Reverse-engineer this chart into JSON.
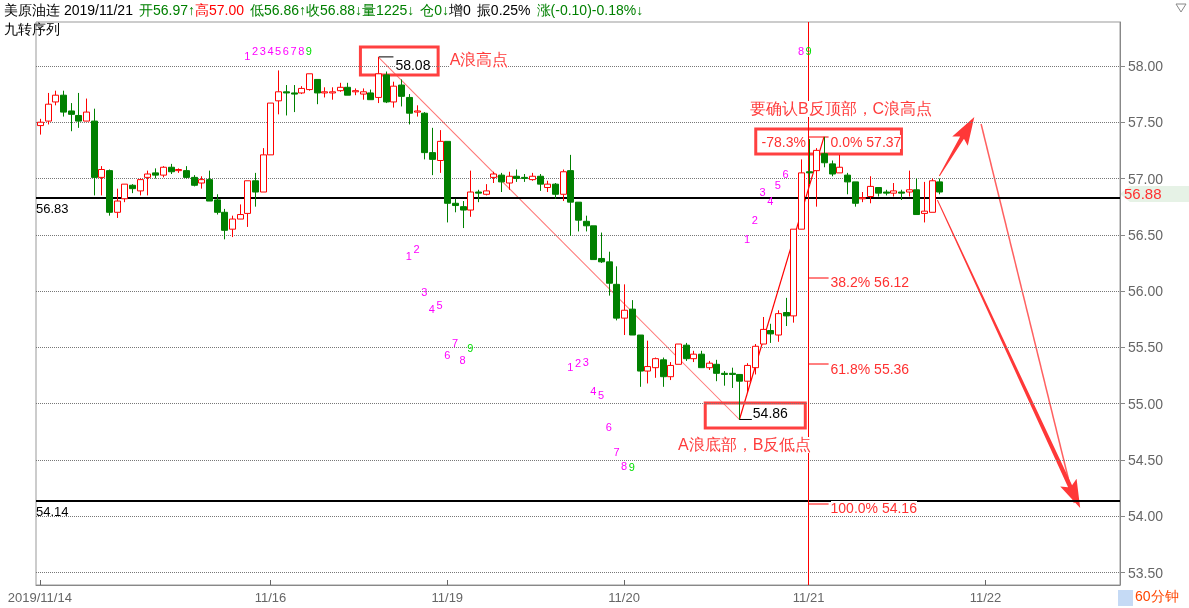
{
  "chart_data": {
    "type": "candlestick",
    "title": "美原油连 2019/11/21",
    "subtitle": "九转序列",
    "categories": [
      "2019/11/14",
      null,
      null,
      null,
      null,
      null,
      null,
      null,
      null,
      null,
      null,
      null,
      null,
      null,
      null,
      null,
      null,
      null,
      null,
      null,
      null,
      null,
      null,
      null,
      null,
      null,
      null,
      null,
      null,
      null,
      "11/16",
      null,
      null,
      null,
      null,
      null,
      null,
      null,
      null,
      null,
      null,
      null,
      null,
      null,
      null,
      null,
      null,
      null,
      null,
      null,
      null,
      null,
      null,
      "11/19",
      null,
      null,
      null,
      null,
      null,
      null,
      null,
      null,
      null,
      null,
      null,
      null,
      null,
      null,
      null,
      null,
      null,
      null,
      null,
      null,
      null,
      null,
      "11/20",
      null,
      null,
      null,
      null,
      null,
      null,
      null,
      null,
      null,
      null,
      null,
      null,
      null,
      null,
      null,
      null,
      null,
      null,
      null,
      null,
      null,
      null,
      null,
      "11/21",
      null,
      null,
      null,
      null,
      null,
      null,
      null,
      null,
      null,
      null,
      null,
      null,
      null,
      null,
      null,
      null,
      null,
      null,
      null,
      null,
      null,
      null,
      "11/22",
      null,
      null,
      null,
      null,
      null,
      null,
      null,
      null,
      null,
      null,
      null,
      null,
      null,
      null,
      null,
      null,
      null
    ],
    "ohlc": [
      [
        57.47,
        57.53,
        57.39,
        57.5
      ],
      [
        57.51,
        57.76,
        57.48,
        57.66
      ],
      [
        57.68,
        57.78,
        57.65,
        57.74
      ],
      [
        57.74,
        57.78,
        57.55,
        57.59
      ],
      [
        57.6,
        57.67,
        57.42,
        57.57
      ],
      [
        57.56,
        57.76,
        57.45,
        57.51
      ],
      [
        57.51,
        57.71,
        57.51,
        57.59
      ],
      [
        57.51,
        57.62,
        56.85,
        57.01
      ],
      [
        57.01,
        57.11,
        56.85,
        57.08
      ],
      [
        57.07,
        57.08,
        56.67,
        56.7
      ],
      [
        56.7,
        56.91,
        56.65,
        56.8
      ],
      [
        56.82,
        56.95,
        56.79,
        56.95
      ],
      [
        56.94,
        56.95,
        56.87,
        56.91
      ],
      [
        56.89,
        57.0,
        56.85,
        56.99
      ],
      [
        57.01,
        57.07,
        56.85,
        57.04
      ],
      [
        57.05,
        57.09,
        57.0,
        57.03
      ],
      [
        57.03,
        57.11,
        57.01,
        57.1
      ],
      [
        57.1,
        57.13,
        57.04,
        57.06
      ],
      [
        57.07,
        57.09,
        57.05,
        57.08
      ],
      [
        57.07,
        57.11,
        57.0,
        57.01
      ],
      [
        57.01,
        57.03,
        56.93,
        56.94
      ],
      [
        56.96,
        57.02,
        56.91,
        56.99
      ],
      [
        56.99,
        57.07,
        56.8,
        56.8
      ],
      [
        56.81,
        56.86,
        56.68,
        56.7
      ],
      [
        56.7,
        56.73,
        56.46,
        56.54
      ],
      [
        56.55,
        56.67,
        56.48,
        56.64
      ],
      [
        56.64,
        56.77,
        56.64,
        56.68
      ],
      [
        56.69,
        56.98,
        56.57,
        56.98
      ],
      [
        56.98,
        57.05,
        56.75,
        56.88
      ],
      [
        56.88,
        57.27,
        56.88,
        57.21
      ],
      [
        57.21,
        57.67,
        57.21,
        57.67
      ],
      [
        57.69,
        57.96,
        57.57,
        57.77
      ],
      [
        57.77,
        57.83,
        57.56,
        57.76
      ],
      [
        57.76,
        57.83,
        57.59,
        57.75
      ],
      [
        57.76,
        57.82,
        57.75,
        57.8
      ],
      [
        57.79,
        57.93,
        57.78,
        57.93
      ],
      [
        57.88,
        57.88,
        57.66,
        57.76
      ],
      [
        57.76,
        57.81,
        57.72,
        57.77
      ],
      [
        57.76,
        57.81,
        57.7,
        57.77
      ],
      [
        57.78,
        57.85,
        57.77,
        57.81
      ],
      [
        57.81,
        57.85,
        57.74,
        57.74
      ],
      [
        57.77,
        57.8,
        57.74,
        57.78
      ],
      [
        57.75,
        57.8,
        57.7,
        57.77
      ],
      [
        57.76,
        57.79,
        57.7,
        57.7
      ],
      [
        57.72,
        58.08,
        57.67,
        57.93
      ],
      [
        57.92,
        57.95,
        57.67,
        57.68
      ],
      [
        57.68,
        57.86,
        57.63,
        57.82
      ],
      [
        57.83,
        57.88,
        57.64,
        57.73
      ],
      [
        57.72,
        57.75,
        57.48,
        57.58
      ],
      [
        57.59,
        57.65,
        57.55,
        57.6
      ],
      [
        57.58,
        57.59,
        57.17,
        57.23
      ],
      [
        57.23,
        57.45,
        57.03,
        57.17
      ],
      [
        57.16,
        57.43,
        57.05,
        57.33
      ],
      [
        57.33,
        57.33,
        56.61,
        56.78
      ],
      [
        56.78,
        56.82,
        56.7,
        56.76
      ],
      [
        56.75,
        56.8,
        56.56,
        56.72
      ],
      [
        56.72,
        57.07,
        56.66,
        56.88
      ],
      [
        56.88,
        56.9,
        56.79,
        56.87
      ],
      [
        56.86,
        56.95,
        56.85,
        56.89
      ],
      [
        57.01,
        57.06,
        56.96,
        57.04
      ],
      [
        57.03,
        57.05,
        56.88,
        56.97
      ],
      [
        56.96,
        57.06,
        56.9,
        57.02
      ],
      [
        57.02,
        57.08,
        56.97,
        57.0
      ],
      [
        57.01,
        57.04,
        56.97,
        57.0
      ],
      [
        56.99,
        57.05,
        56.98,
        57.02
      ],
      [
        57.02,
        57.04,
        56.89,
        56.95
      ],
      [
        56.92,
        56.98,
        56.88,
        56.95
      ],
      [
        56.95,
        56.96,
        56.82,
        56.86
      ],
      [
        56.86,
        57.08,
        56.8,
        57.06
      ],
      [
        57.07,
        57.21,
        56.49,
        56.79
      ],
      [
        56.79,
        56.79,
        56.53,
        56.63
      ],
      [
        56.62,
        56.67,
        56.53,
        56.58
      ],
      [
        56.58,
        56.58,
        56.28,
        56.28
      ],
      [
        56.29,
        56.52,
        56.25,
        56.26
      ],
      [
        56.26,
        56.35,
        55.96,
        56.07
      ],
      [
        56.06,
        56.22,
        55.74,
        55.76
      ],
      [
        55.76,
        56.06,
        55.61,
        55.83
      ],
      [
        55.84,
        55.92,
        55.61,
        55.61
      ],
      [
        55.61,
        55.61,
        55.15,
        55.29
      ],
      [
        55.29,
        55.56,
        55.18,
        55.33
      ],
      [
        55.32,
        55.41,
        55.23,
        55.4
      ],
      [
        55.39,
        55.41,
        55.15,
        55.24
      ],
      [
        55.24,
        55.37,
        55.21,
        55.34
      ],
      [
        55.35,
        55.53,
        55.35,
        55.53
      ],
      [
        55.52,
        55.54,
        55.38,
        55.4
      ],
      [
        55.4,
        55.47,
        55.37,
        55.44
      ],
      [
        55.44,
        55.47,
        55.32,
        55.32
      ],
      [
        55.32,
        55.38,
        55.3,
        55.36
      ],
      [
        55.35,
        55.39,
        55.2,
        55.27
      ],
      [
        55.27,
        55.29,
        55.16,
        55.26
      ],
      [
        55.27,
        55.32,
        55.14,
        55.26
      ],
      [
        55.26,
        55.26,
        54.86,
        55.2
      ],
      [
        55.2,
        55.36,
        55.1,
        55.34
      ],
      [
        55.32,
        55.53,
        55.26,
        55.51
      ],
      [
        55.53,
        55.77,
        55.53,
        55.66
      ],
      [
        55.65,
        55.71,
        55.54,
        55.62
      ],
      [
        55.61,
        55.83,
        55.55,
        55.8
      ],
      [
        55.81,
        55.94,
        55.69,
        55.78
      ],
      [
        55.78,
        56.55,
        55.72,
        56.55
      ],
      [
        56.55,
        57.17,
        56.55,
        57.05
      ],
      [
        57.06,
        57.35,
        56.95,
        57.05
      ],
      [
        57.07,
        57.27,
        56.75,
        57.25
      ],
      [
        57.22,
        57.37,
        57.1,
        57.14
      ],
      [
        57.13,
        57.16,
        57.02,
        57.04
      ],
      [
        57.05,
        57.21,
        57.05,
        57.1
      ],
      [
        57.03,
        57.05,
        56.86,
        56.97
      ],
      [
        56.97,
        56.97,
        56.75,
        56.78
      ],
      [
        56.82,
        56.88,
        56.79,
        56.83
      ],
      [
        56.84,
        57.02,
        56.78,
        56.93
      ],
      [
        56.92,
        56.92,
        56.84,
        56.87
      ],
      [
        56.88,
        56.9,
        56.85,
        56.87
      ],
      [
        56.87,
        56.96,
        56.84,
        56.89
      ],
      [
        56.88,
        56.9,
        56.81,
        56.87
      ],
      [
        56.88,
        57.07,
        56.84,
        56.9
      ],
      [
        56.9,
        57.0,
        56.68,
        56.68
      ],
      [
        56.69,
        56.97,
        56.61,
        56.71
      ],
      [
        56.7,
        57.0,
        56.7,
        56.98
      ],
      [
        56.97,
        57.0,
        56.86,
        56.88
      ],
      null,
      null,
      null,
      null,
      null,
      null,
      null,
      null,
      null,
      null,
      null,
      null,
      null,
      null,
      null,
      null,
      null,
      null,
      null,
      null,
      null,
      null,
      null
    ],
    "colors": [
      "#ff0000",
      "#ff0000",
      "#ff0000",
      "#008000",
      "#008000",
      "#008000",
      "#ff0000",
      "#008000",
      "#ff0000",
      "#008000",
      "#ff0000",
      "#ff0000",
      "#008000",
      "#ff0000",
      "#ff0000",
      "#008000",
      "#ff0000",
      "#008000",
      "#ff0000",
      "#008000",
      "#008000",
      "#ff0000",
      "#008000",
      "#008000",
      "#008000",
      "#ff0000",
      "#ff0000",
      "#ff0000",
      "#008000",
      "#ff0000",
      "#ff0000",
      "#ff0000",
      "#008000",
      "#008000",
      "#ff0000",
      "#ff0000",
      "#008000",
      "#ff0000",
      "#ff0000",
      "#ff0000",
      "#008000",
      "#ff0000",
      "#ff0000",
      "#008000",
      "#ff0000",
      "#008000",
      "#ff0000",
      "#008000",
      "#008000",
      "#ff0000",
      "#008000",
      "#008000",
      "#ff0000",
      "#008000",
      "#008000",
      "#008000",
      "#ff0000",
      "#008000",
      "#ff0000",
      "#ff0000",
      "#008000",
      "#ff0000",
      "#008000",
      "#008000",
      "#ff0000",
      "#008000",
      "#ff0000",
      "#008000",
      "#ff0000",
      "#008000",
      "#008000",
      "#008000",
      "#008000",
      "#008000",
      "#008000",
      "#008000",
      "#ff0000",
      "#008000",
      "#008000",
      "#ff0000",
      "#ff0000",
      "#008000",
      "#ff0000",
      "#ff0000",
      "#008000",
      "#ff0000",
      "#008000",
      "#ff0000",
      "#008000",
      "#008000",
      "#008000",
      "#008000",
      "#ff0000",
      "#ff0000",
      "#ff0000",
      "#008000",
      "#ff0000",
      "#008000",
      "#ff0000",
      "#ff0000",
      "#008000",
      "#ff0000",
      "#008000",
      "#008000",
      "#ff0000",
      "#008000",
      "#008000",
      "#ff0000",
      "#ff0000",
      "#008000",
      "#008000",
      "#ff0000",
      "#008000",
      "#ff0000",
      "#008000",
      "#ff0000",
      "#ff0000",
      "#008000",
      null,
      null,
      null,
      null,
      null,
      null,
      null,
      null,
      null,
      null,
      null,
      null,
      null,
      null,
      null,
      null,
      null,
      null,
      null,
      null,
      null,
      null,
      null
    ],
    "ylim": [
      53.39,
      58.39
    ],
    "yticks": [
      {
        "value": 53.5,
        "label": "53.50"
      },
      {
        "value": 54,
        "label": "54.00"
      },
      {
        "value": 54.5,
        "label": "54.50"
      },
      {
        "value": 55,
        "label": "55.00"
      },
      {
        "value": 55.5,
        "label": "55.50"
      },
      {
        "value": 56,
        "label": "56.00"
      },
      {
        "value": 56.5,
        "label": "56.50"
      },
      {
        "value": 57,
        "label": "57.00"
      },
      {
        "value": 57.5,
        "label": "57.50"
      },
      {
        "value": 58,
        "label": "58.00"
      }
    ],
    "grid": "y",
    "ref_lines": [
      {
        "axis": "y",
        "value": 56.83,
        "label": "56.83",
        "color": "#000000"
      },
      {
        "axis": "y",
        "value": 54.14,
        "label": "54.14",
        "color": "#000000"
      },
      {
        "axis": "x",
        "value": "11/21",
        "color": "#ff0000"
      }
    ],
    "annotations": [
      "开56.97↑",
      "高57.00",
      "低56.86↑",
      "收56.88↓",
      "量1225↓",
      "仓0↓",
      "增0",
      "振0.25%",
      "涨(-0.10)-0.18%↓",
      "58.08",
      "A浪高点",
      "54.86",
      "A浪底部，B反低点",
      "要确认B反顶部，C浪高点",
      "-78.3%",
      "0.0% 57.37",
      "38.2% 56.12",
      "61.8% 55.36",
      "100.0% 54.16",
      "56.88",
      "60分钟",
      "1",
      "2",
      "3",
      "4",
      "5",
      "6",
      "7",
      "8",
      "9",
      "1",
      "2",
      "3",
      "4",
      "5",
      "6",
      "7",
      "8",
      "9",
      "1",
      "2",
      "3",
      "4",
      "5",
      "6",
      "7",
      "8",
      "9",
      "1",
      "2",
      "3",
      "4",
      "5",
      "6",
      "8",
      "9"
    ]
  }
}
